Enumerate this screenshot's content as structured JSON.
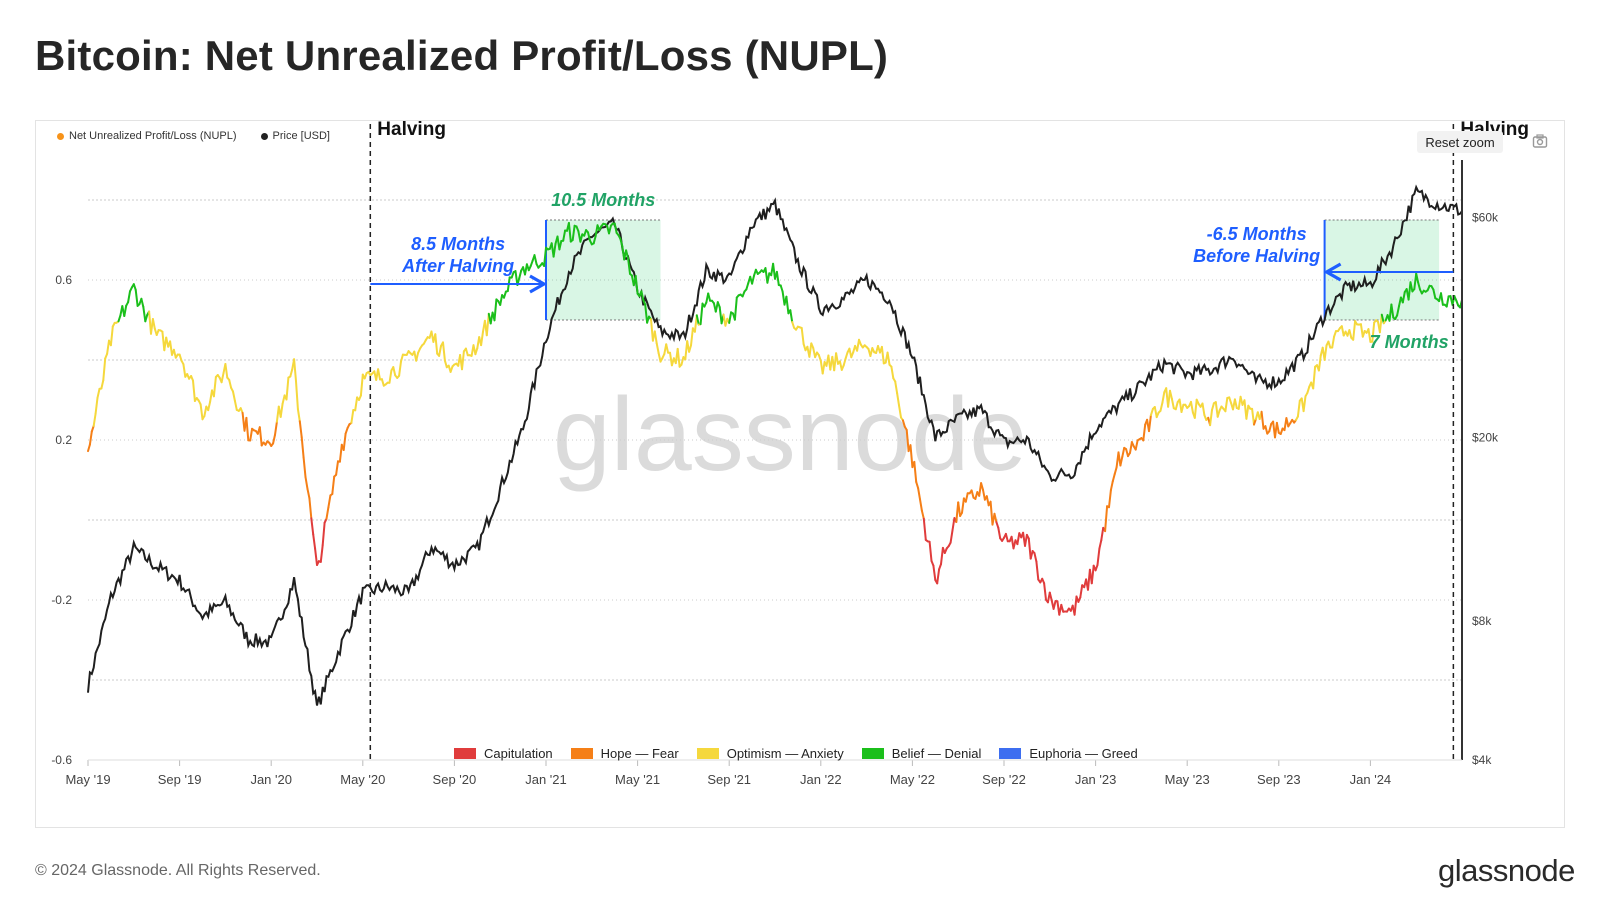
{
  "title": "Bitcoin: Net Unrealized Profit/Loss (NUPL)",
  "legend_top": [
    {
      "label": "Net Unrealized Profit/Loss (NUPL)",
      "color": "#f7931a"
    },
    {
      "label": "Price [USD]",
      "color": "#222222"
    }
  ],
  "reset_zoom": "Reset zoom",
  "footer": {
    "copyright": "© 2024 Glassnode. All Rights Reserved.",
    "logo": "glassnode",
    "watermark": "glassnode"
  },
  "chart_data": {
    "type": "line",
    "x_axis": {
      "ticks": [
        "May '19",
        "Sep '19",
        "Jan '20",
        "May '20",
        "Sep '20",
        "Jan '21",
        "May '21",
        "Sep '21",
        "Jan '22",
        "May '22",
        "Sep '22",
        "Jan '23",
        "May '23",
        "Sep '23",
        "Jan '24"
      ],
      "range": [
        "2019-05",
        "2024-05"
      ]
    },
    "y_left": {
      "label": "",
      "ticks": [
        "0.6",
        "0.2",
        "-0.2",
        "-0.6"
      ],
      "range": [
        -0.6,
        0.9
      ]
    },
    "y_right": {
      "label": "",
      "scale": "log",
      "ticks": [
        "$60k",
        "$20k",
        "$8k",
        "$4k"
      ]
    },
    "grid": true,
    "nupl_zones": [
      {
        "label": "Capitulation",
        "color": "#e03c3c"
      },
      {
        "label": "Hope — Fear",
        "color": "#f57f17"
      },
      {
        "label": "Optimism — Anxiety",
        "color": "#f5d83d"
      },
      {
        "label": "Belief — Denial",
        "color": "#1bbf1b"
      },
      {
        "label": "Euphoria — Greed",
        "color": "#3d6ef0"
      }
    ],
    "series": [
      {
        "name": "Net Unrealized Profit/Loss (NUPL)",
        "axis": "left",
        "points": [
          [
            "2019-05",
            0.17
          ],
          [
            "2019-06",
            0.45
          ],
          [
            "2019-07",
            0.58
          ],
          [
            "2019-08",
            0.46
          ],
          [
            "2019-09",
            0.42
          ],
          [
            "2019-10",
            0.27
          ],
          [
            "2019-11",
            0.38
          ],
          [
            "2019-12",
            0.22
          ],
          [
            "2020-01",
            0.2
          ],
          [
            "2020-02",
            0.38
          ],
          [
            "2020-03",
            -0.13
          ],
          [
            "2020-04",
            0.17
          ],
          [
            "2020-05",
            0.35
          ],
          [
            "2020-06",
            0.36
          ],
          [
            "2020-07",
            0.4
          ],
          [
            "2020-08",
            0.46
          ],
          [
            "2020-09",
            0.38
          ],
          [
            "2020-10",
            0.44
          ],
          [
            "2020-11",
            0.55
          ],
          [
            "2020-12",
            0.63
          ],
          [
            "2021-01",
            0.66
          ],
          [
            "2021-02",
            0.72
          ],
          [
            "2021-03",
            0.71
          ],
          [
            "2021-04",
            0.73
          ],
          [
            "2021-05",
            0.58
          ],
          [
            "2021-06",
            0.42
          ],
          [
            "2021-07",
            0.4
          ],
          [
            "2021-08",
            0.55
          ],
          [
            "2021-09",
            0.5
          ],
          [
            "2021-10",
            0.6
          ],
          [
            "2021-11",
            0.62
          ],
          [
            "2021-12",
            0.48
          ],
          [
            "2022-01",
            0.38
          ],
          [
            "2022-02",
            0.4
          ],
          [
            "2022-03",
            0.44
          ],
          [
            "2022-04",
            0.4
          ],
          [
            "2022-05",
            0.15
          ],
          [
            "2022-06",
            -0.15
          ],
          [
            "2022-07",
            0.02
          ],
          [
            "2022-08",
            0.08
          ],
          [
            "2022-09",
            -0.06
          ],
          [
            "2022-10",
            -0.05
          ],
          [
            "2022-11",
            -0.2
          ],
          [
            "2022-12",
            -0.23
          ],
          [
            "2023-01",
            -0.12
          ],
          [
            "2023-02",
            0.15
          ],
          [
            "2023-03",
            0.2
          ],
          [
            "2023-04",
            0.31
          ],
          [
            "2023-05",
            0.29
          ],
          [
            "2023-06",
            0.26
          ],
          [
            "2023-07",
            0.3
          ],
          [
            "2023-08",
            0.26
          ],
          [
            "2023-09",
            0.22
          ],
          [
            "2023-10",
            0.28
          ],
          [
            "2023-11",
            0.42
          ],
          [
            "2023-12",
            0.48
          ],
          [
            "2024-01",
            0.46
          ],
          [
            "2024-02",
            0.52
          ],
          [
            "2024-03",
            0.6
          ],
          [
            "2024-04",
            0.56
          ],
          [
            "2024-05",
            0.55
          ]
        ]
      },
      {
        "name": "Price [USD]",
        "axis": "right",
        "points": [
          [
            "2019-05",
            5800
          ],
          [
            "2019-06",
            9000
          ],
          [
            "2019-07",
            11500
          ],
          [
            "2019-08",
            10500
          ],
          [
            "2019-09",
            9800
          ],
          [
            "2019-10",
            8200
          ],
          [
            "2019-11",
            8800
          ],
          [
            "2019-12",
            7300
          ],
          [
            "2020-01",
            7200
          ],
          [
            "2020-02",
            9800
          ],
          [
            "2020-03",
            5200
          ],
          [
            "2020-04",
            7000
          ],
          [
            "2020-05",
            9200
          ],
          [
            "2020-06",
            9500
          ],
          [
            "2020-07",
            9200
          ],
          [
            "2020-08",
            11600
          ],
          [
            "2020-09",
            10600
          ],
          [
            "2020-10",
            11500
          ],
          [
            "2020-11",
            15500
          ],
          [
            "2020-12",
            21000
          ],
          [
            "2021-01",
            33000
          ],
          [
            "2021-02",
            46000
          ],
          [
            "2021-03",
            55000
          ],
          [
            "2021-04",
            58000
          ],
          [
            "2021-05",
            42000
          ],
          [
            "2021-06",
            34000
          ],
          [
            "2021-07",
            33000
          ],
          [
            "2021-08",
            46000
          ],
          [
            "2021-09",
            44000
          ],
          [
            "2021-10",
            58000
          ],
          [
            "2021-11",
            64000
          ],
          [
            "2021-12",
            48000
          ],
          [
            "2022-01",
            38000
          ],
          [
            "2022-02",
            40000
          ],
          [
            "2022-03",
            44000
          ],
          [
            "2022-04",
            40000
          ],
          [
            "2022-05",
            30000
          ],
          [
            "2022-06",
            20000
          ],
          [
            "2022-07",
            22000
          ],
          [
            "2022-08",
            23000
          ],
          [
            "2022-09",
            19500
          ],
          [
            "2022-10",
            19800
          ],
          [
            "2022-11",
            16500
          ],
          [
            "2022-12",
            16800
          ],
          [
            "2023-01",
            21000
          ],
          [
            "2023-02",
            23500
          ],
          [
            "2023-03",
            26000
          ],
          [
            "2023-04",
            29000
          ],
          [
            "2023-05",
            27500
          ],
          [
            "2023-06",
            28000
          ],
          [
            "2023-07",
            30000
          ],
          [
            "2023-08",
            26500
          ],
          [
            "2023-09",
            26500
          ],
          [
            "2023-10",
            30000
          ],
          [
            "2023-11",
            37000
          ],
          [
            "2023-12",
            42500
          ],
          [
            "2024-01",
            43000
          ],
          [
            "2024-02",
            52000
          ],
          [
            "2024-03",
            68000
          ],
          [
            "2024-04",
            64000
          ],
          [
            "2024-05",
            62000
          ]
        ]
      }
    ],
    "annotations": {
      "halvings": [
        {
          "date": "2020-05-11",
          "label": "Halving"
        },
        {
          "date": "2024-04-20",
          "label": "Halving"
        }
      ],
      "highlight_bands": [
        {
          "start": "2021-01",
          "end": "2021-06",
          "y_range": [
            0.5,
            0.75
          ],
          "label": "10.5 Months"
        },
        {
          "start": "2023-11",
          "end": "2024-04",
          "y_range": [
            0.5,
            0.75
          ],
          "label": "7 Months"
        }
      ],
      "arrows": [
        {
          "line1": "8.5 Months",
          "line2": "After Halving"
        },
        {
          "line1": "-6.5 Months",
          "line2": "Before Halving"
        }
      ]
    }
  }
}
